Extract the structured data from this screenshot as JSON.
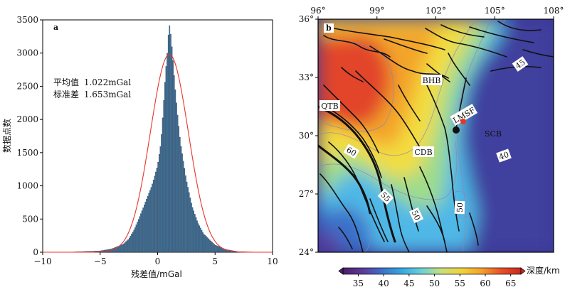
{
  "panel_a": {
    "label": "a",
    "stats": {
      "mean_label": "平均值",
      "mean_value": "1.022mGal",
      "std_label": "标准差",
      "std_value": "1.653mGal"
    },
    "chart_data": {
      "type": "bar",
      "subtype": "histogram with fitted normal curve",
      "xlabel": "残差值/mGal",
      "ylabel": "数据点数",
      "xlim": [
        -10,
        10
      ],
      "ylim": [
        0,
        3500
      ],
      "xticks": [
        -10,
        -5,
        0,
        5,
        10
      ],
      "yticks": [
        0,
        500,
        1000,
        1500,
        2000,
        2500,
        3000,
        3500
      ],
      "bin_width": 0.1,
      "bar_color": "#3a6f99",
      "curve_color": "#e8352a",
      "histogram_points": [
        {
          "x": -5.0,
          "y": 20
        },
        {
          "x": -4.0,
          "y": 50
        },
        {
          "x": -3.0,
          "y": 120
        },
        {
          "x": -2.5,
          "y": 200
        },
        {
          "x": -2.0,
          "y": 350
        },
        {
          "x": -1.5,
          "y": 560
        },
        {
          "x": -1.0,
          "y": 780
        },
        {
          "x": -0.5,
          "y": 1000
        },
        {
          "x": 0.0,
          "y": 1300
        },
        {
          "x": 0.3,
          "y": 1650
        },
        {
          "x": 0.5,
          "y": 2150
        },
        {
          "x": 0.7,
          "y": 2700
        },
        {
          "x": 0.9,
          "y": 3100
        },
        {
          "x": 1.0,
          "y": 3450
        },
        {
          "x": 1.1,
          "y": 3380
        },
        {
          "x": 1.3,
          "y": 3000
        },
        {
          "x": 1.5,
          "y": 2550
        },
        {
          "x": 1.7,
          "y": 2150
        },
        {
          "x": 2.0,
          "y": 1650
        },
        {
          "x": 2.5,
          "y": 1100
        },
        {
          "x": 3.0,
          "y": 700
        },
        {
          "x": 3.5,
          "y": 450
        },
        {
          "x": 4.0,
          "y": 280
        },
        {
          "x": 5.0,
          "y": 110
        },
        {
          "x": 6.0,
          "y": 40
        },
        {
          "x": 7.0,
          "y": 10
        }
      ],
      "normal_fit": {
        "mean": 1.022,
        "std": 1.653,
        "peak": 2980
      }
    }
  },
  "panel_b": {
    "label": "b",
    "chart_data": {
      "type": "heatmap",
      "subtype": "map of crustal depth",
      "xlim": [
        96,
        108
      ],
      "ylim": [
        24,
        36
      ],
      "xticks": [
        "96°",
        "99°",
        "102°",
        "105°",
        "108°"
      ],
      "yticks": [
        "24°",
        "27°",
        "30°",
        "33°",
        "36°"
      ],
      "colorbar": {
        "label": "深度/km",
        "ticks": [
          35,
          40,
          45,
          50,
          55,
          60,
          65
        ],
        "range": [
          32,
          67
        ],
        "stops": [
          "#4a1f6b",
          "#5e3b9a",
          "#3d72c9",
          "#36a9e0",
          "#6fd1d6",
          "#c9e07a",
          "#f2d23c",
          "#f3a22c",
          "#e8502a",
          "#c82a1f"
        ]
      },
      "region_labels": [
        "BHB",
        "QTB",
        "LMSF",
        "CDB",
        "SCB"
      ],
      "contour_labels": [
        "45",
        "40",
        "60",
        "55",
        "50",
        "50"
      ]
    }
  }
}
